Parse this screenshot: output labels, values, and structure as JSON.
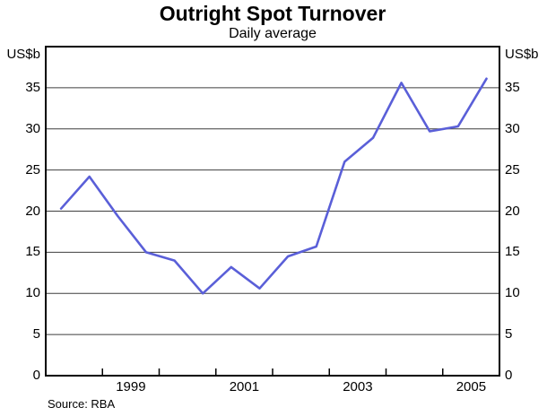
{
  "header": {
    "title": "Outright Spot Turnover",
    "subtitle": "Daily average"
  },
  "footer": {
    "source": "Source: RBA"
  },
  "chart_data": {
    "type": "line",
    "title": "Outright Spot Turnover",
    "subtitle": "Daily average",
    "ylabel_left": "US$b",
    "ylabel_right": "US$b",
    "xlabel": "",
    "ylim": [
      0,
      40
    ],
    "xlim": [
      1998,
      2006
    ],
    "grid": "horizontal",
    "y_gridlines": [
      5,
      10,
      15,
      20,
      25,
      30,
      35
    ],
    "y_tick_labels": [
      "35",
      "30",
      "25",
      "20",
      "15",
      "10",
      "5",
      "0"
    ],
    "y_tick_values": [
      35,
      30,
      25,
      20,
      15,
      10,
      5,
      0
    ],
    "x_tick_years": [
      1999,
      2000,
      2001,
      2002,
      2003,
      2004,
      2005
    ],
    "x_axis_labels": [
      {
        "label": "1999",
        "x": 1999.5
      },
      {
        "label": "2001",
        "x": 2001.5
      },
      {
        "label": "2003",
        "x": 2003.5
      },
      {
        "label": "2005",
        "x": 2005.5
      }
    ],
    "line_color": "#5a5fd8",
    "gridline_color": "#3f3f3f",
    "frame_color": "#000000",
    "series": [
      {
        "name": "Outright spot turnover (daily average, US$b)",
        "color": "#5a5fd8",
        "periods": [
          "1998 H1",
          "1998 H2",
          "1999 H1",
          "1999 H2",
          "2000 H1",
          "2000 H2",
          "2001 H1",
          "2001 H2",
          "2002 H1",
          "2002 H2",
          "2003 H1",
          "2003 H2",
          "2004 H1",
          "2004 H2",
          "2005 H1",
          "2005 H2"
        ],
        "x": [
          1998.27,
          1998.77,
          1999.27,
          1999.77,
          2000.27,
          2000.77,
          2001.27,
          2001.77,
          2002.27,
          2002.77,
          2003.27,
          2003.77,
          2004.27,
          2004.77,
          2005.27,
          2005.77
        ],
        "values": [
          20.3,
          24.2,
          19.4,
          15.0,
          14.0,
          10.0,
          13.2,
          10.6,
          14.5,
          15.7,
          26.0,
          28.9,
          35.6,
          29.7,
          30.3,
          36.1
        ]
      }
    ],
    "source": "Source: RBA"
  }
}
